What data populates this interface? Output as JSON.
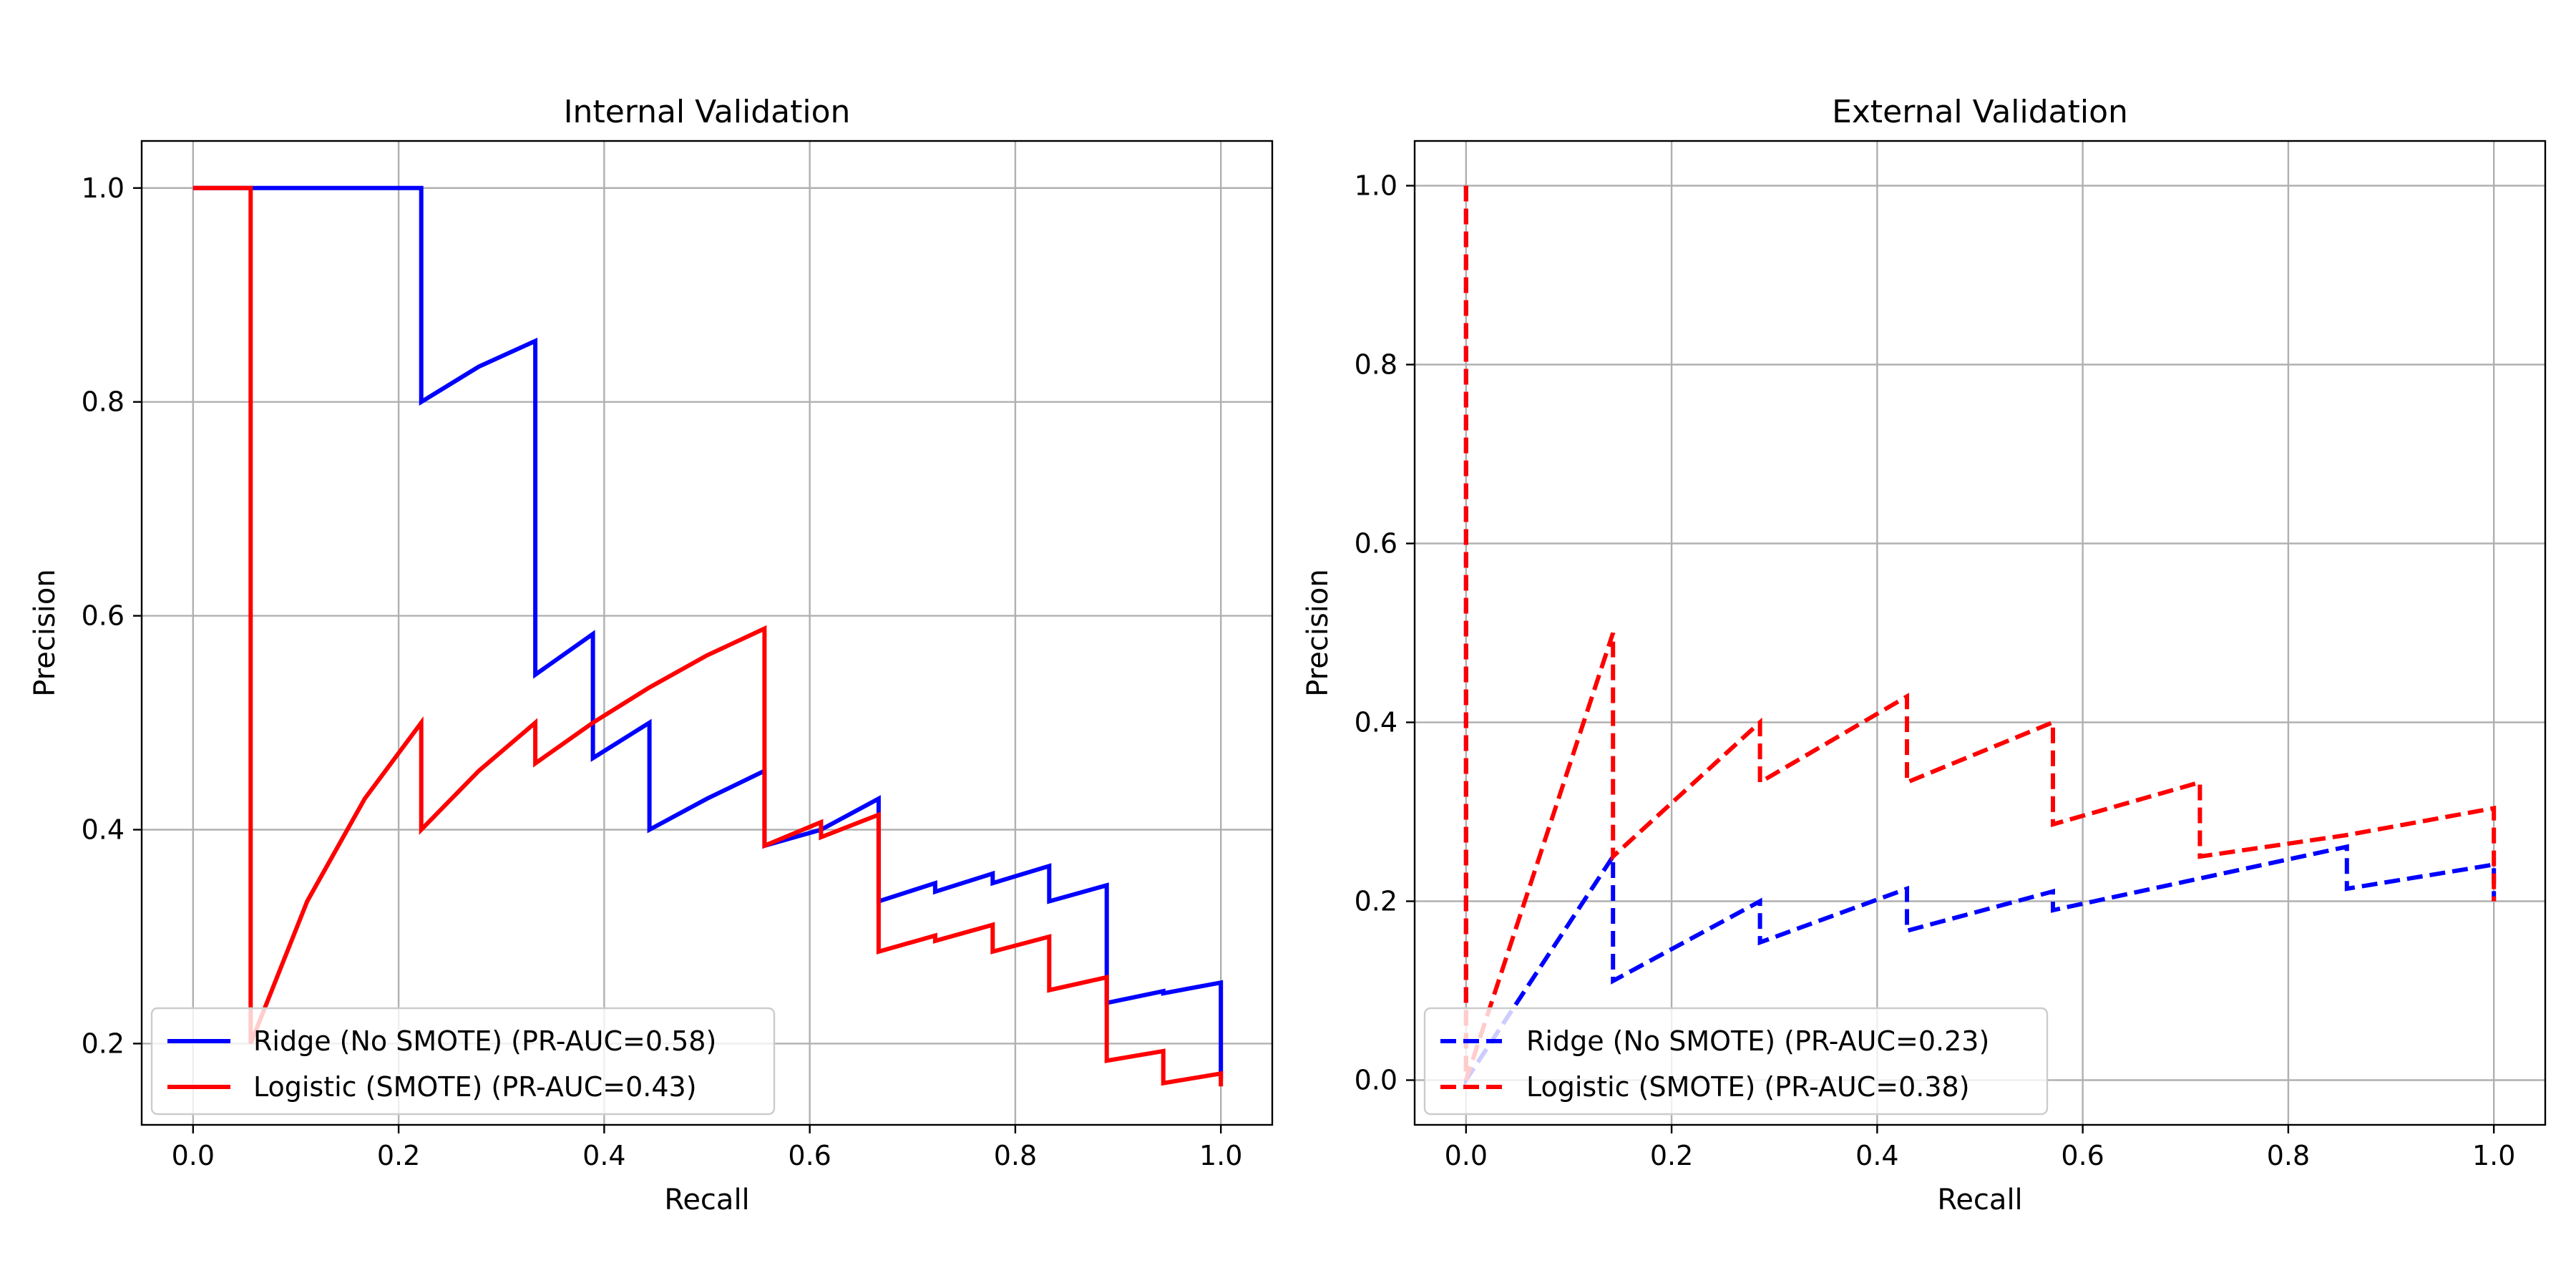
{
  "chart_data": [
    {
      "type": "line",
      "title": "Internal Validation",
      "xlabel": "Recall",
      "ylabel": "Precision",
      "xlim": [
        -0.05,
        1.05
      ],
      "ylim": [
        0.124,
        1.044
      ],
      "xticks": [
        "0.0",
        "0.2",
        "0.4",
        "0.6",
        "0.8",
        "1.0"
      ],
      "yticks": [
        "0.2",
        "0.4",
        "0.6",
        "0.8",
        "1.0"
      ],
      "grid": true,
      "legend_position": "lower-left",
      "series": [
        {
          "name": "Ridge (No SMOTE) (PR-AUC=0.58)",
          "color": "#0000ff",
          "line_style": "solid",
          "x": [
            0,
            0.222,
            0.222,
            0.278,
            0.333,
            0.333,
            0.389,
            0.389,
            0.444,
            0.444,
            0.5,
            0.556,
            0.556,
            0.611,
            0.667,
            0.667,
            0.722,
            0.722,
            0.778,
            0.778,
            0.833,
            0.833,
            0.889,
            0.889,
            0.944,
            0.944,
            1.0,
            1.0
          ],
          "y": [
            1.0,
            1.0,
            0.8,
            0.833,
            0.857,
            0.545,
            0.583,
            0.467,
            0.5,
            0.4,
            0.429,
            0.455,
            0.385,
            0.4,
            0.429,
            0.333,
            0.35,
            0.342,
            0.359,
            0.35,
            0.366,
            0.333,
            0.348,
            0.238,
            0.249,
            0.247,
            0.257,
            0.167
          ]
        },
        {
          "name": "Logistic (SMOTE) (PR-AUC=0.43)",
          "color": "#ff0000",
          "line_style": "solid",
          "x": [
            0,
            0.056,
            0.056,
            0.111,
            0.167,
            0.222,
            0.222,
            0.278,
            0.333,
            0.333,
            0.389,
            0.444,
            0.5,
            0.556,
            0.556,
            0.611,
            0.611,
            0.667,
            0.667,
            0.722,
            0.722,
            0.778,
            0.778,
            0.833,
            0.833,
            0.889,
            0.889,
            0.944,
            0.944,
            1.0,
            1.0
          ],
          "y": [
            1.0,
            1.0,
            0.2,
            0.333,
            0.429,
            0.5,
            0.4,
            0.455,
            0.5,
            0.462,
            0.5,
            0.533,
            0.563,
            0.588,
            0.385,
            0.407,
            0.393,
            0.414,
            0.286,
            0.301,
            0.296,
            0.311,
            0.286,
            0.3,
            0.25,
            0.262,
            0.184,
            0.193,
            0.163,
            0.172,
            0.16
          ]
        }
      ]
    },
    {
      "type": "line",
      "title": "External Validation",
      "xlabel": "Recall",
      "ylabel": "Precision",
      "xlim": [
        -0.05,
        1.05
      ],
      "ylim": [
        -0.05,
        1.05
      ],
      "xticks": [
        "0.0",
        "0.2",
        "0.4",
        "0.6",
        "0.8",
        "1.0"
      ],
      "yticks": [
        "0.0",
        "0.2",
        "0.4",
        "0.6",
        "0.8",
        "1.0"
      ],
      "grid": true,
      "legend_position": "lower-left",
      "series": [
        {
          "name": "Ridge (No SMOTE) (PR-AUC=0.23)",
          "color": "#0000ff",
          "line_style": "dashed",
          "x": [
            0,
            0,
            0.143,
            0.143,
            0.286,
            0.286,
            0.429,
            0.429,
            0.571,
            0.571,
            0.857,
            0.857,
            1.0,
            1.0
          ],
          "y": [
            1.0,
            0.0,
            0.25,
            0.111,
            0.2,
            0.154,
            0.214,
            0.167,
            0.211,
            0.19,
            0.261,
            0.214,
            0.241,
            0.2
          ]
        },
        {
          "name": "Logistic (SMOTE) (PR-AUC=0.38)",
          "color": "#ff0000",
          "line_style": "dashed",
          "x": [
            0,
            0,
            0.143,
            0.143,
            0.286,
            0.286,
            0.429,
            0.429,
            0.571,
            0.571,
            0.714,
            0.714,
            0.857,
            1.0,
            1.0
          ],
          "y": [
            1.0,
            0.0,
            0.5,
            0.25,
            0.4,
            0.333,
            0.429,
            0.333,
            0.4,
            0.286,
            0.333,
            0.25,
            0.274,
            0.304,
            0.2
          ]
        }
      ]
    }
  ]
}
